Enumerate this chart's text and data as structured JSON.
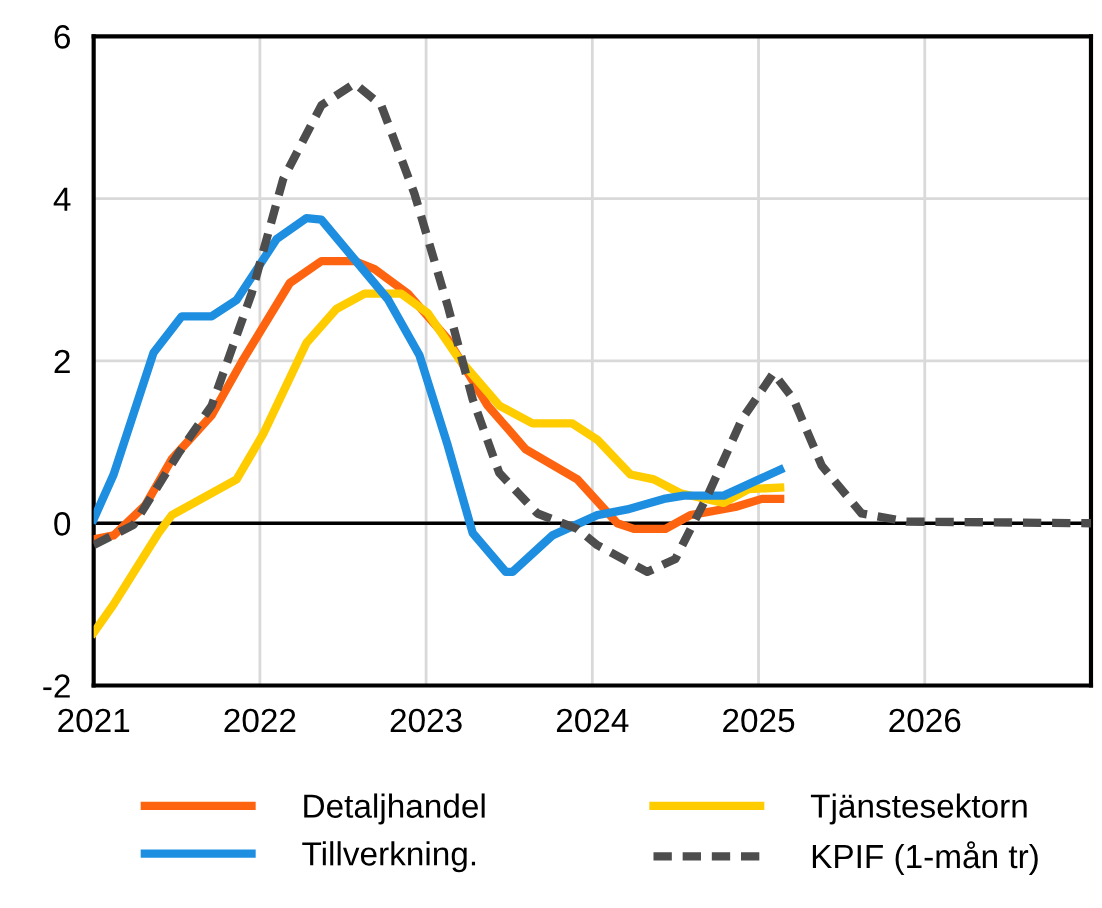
{
  "chart_data": {
    "type": "line",
    "xlim": [
      2021,
      2027
    ],
    "xticks": [
      {
        "value": 2021,
        "label": "2021"
      },
      {
        "value": 2022,
        "label": "2022"
      },
      {
        "value": 2023,
        "label": "2023"
      },
      {
        "value": 2024,
        "label": "2024"
      },
      {
        "value": 2025,
        "label": "2025"
      },
      {
        "value": 2026,
        "label": "2026"
      }
    ],
    "ylim": [
      -2,
      6
    ],
    "yticks": [
      -2,
      0,
      2,
      4,
      6
    ],
    "grid": true,
    "legend": "bottom",
    "ref_lines": [
      {
        "axis": "y",
        "value": 0,
        "color": "#000000"
      }
    ],
    "series": [
      {
        "name": "Detaljhandel",
        "color": "#fe6410",
        "line_style": "solid",
        "x": [
          2021.0,
          2021.12,
          2021.31,
          2021.47,
          2021.71,
          2021.9,
          2022.18,
          2022.37,
          2022.57,
          2022.69,
          2022.89,
          2023.13,
          2023.37,
          2023.6,
          2023.91,
          2024.15,
          2024.25,
          2024.44,
          2024.59,
          2024.86,
          2025.02,
          2025.13
        ],
        "values": [
          -0.2,
          -0.15,
          0.22,
          0.79,
          1.33,
          2.02,
          2.96,
          3.23,
          3.23,
          3.13,
          2.83,
          2.27,
          1.45,
          0.91,
          0.54,
          0.0,
          -0.07,
          -0.07,
          0.1,
          0.2,
          0.3,
          0.3
        ]
      },
      {
        "name": "Tjänstesektorn",
        "color": "#ffcc00",
        "line_style": "solid",
        "x": [
          2021.0,
          2021.12,
          2021.39,
          2021.47,
          2021.86,
          2022.02,
          2022.28,
          2022.46,
          2022.63,
          2022.85,
          2023.01,
          2023.2,
          2023.44,
          2023.64,
          2023.88,
          2024.03,
          2024.23,
          2024.37,
          2024.53,
          2024.79,
          2024.94,
          2025.13
        ],
        "values": [
          -1.35,
          -1.0,
          -0.12,
          0.1,
          0.54,
          1.1,
          2.22,
          2.64,
          2.83,
          2.83,
          2.59,
          2.02,
          1.45,
          1.23,
          1.23,
          1.03,
          0.6,
          0.54,
          0.37,
          0.25,
          0.42,
          0.44
        ]
      },
      {
        "name": "Tillverkning.",
        "color": "#1e8fe0",
        "line_style": "solid",
        "x": [
          2021.0,
          2021.12,
          2021.36,
          2021.53,
          2021.71,
          2021.86,
          2022.1,
          2022.28,
          2022.37,
          2022.57,
          2022.77,
          2022.96,
          2023.13,
          2023.28,
          2023.48,
          2023.52,
          2023.76,
          2024.03,
          2024.21,
          2024.43,
          2024.55,
          2024.79,
          2025.13
        ],
        "values": [
          0.05,
          0.6,
          2.1,
          2.55,
          2.55,
          2.75,
          3.5,
          3.76,
          3.74,
          3.25,
          2.76,
          2.07,
          0.96,
          -0.12,
          -0.6,
          -0.6,
          -0.15,
          0.1,
          0.17,
          0.3,
          0.34,
          0.34,
          0.66
        ]
      },
      {
        "name": "KPIF (1-mån tr)",
        "color": "#4d4d4d",
        "line_style": "dashed",
        "x": [
          2021.0,
          2021.24,
          2021.51,
          2021.71,
          2021.95,
          2022.14,
          2022.37,
          2022.57,
          2022.73,
          2022.93,
          2023.13,
          2023.28,
          2023.44,
          2023.67,
          2023.91,
          2024.03,
          2024.33,
          2024.5,
          2024.7,
          2024.9,
          2025.09,
          2025.21,
          2025.38,
          2025.62,
          2025.89,
          2027.0
        ],
        "values": [
          -0.27,
          -0.02,
          0.86,
          1.45,
          2.83,
          4.24,
          5.15,
          5.42,
          5.15,
          4.06,
          2.68,
          1.53,
          0.62,
          0.12,
          -0.07,
          -0.27,
          -0.6,
          -0.44,
          0.37,
          1.28,
          1.85,
          1.53,
          0.71,
          0.12,
          0.02,
          0.0
        ]
      }
    ]
  }
}
